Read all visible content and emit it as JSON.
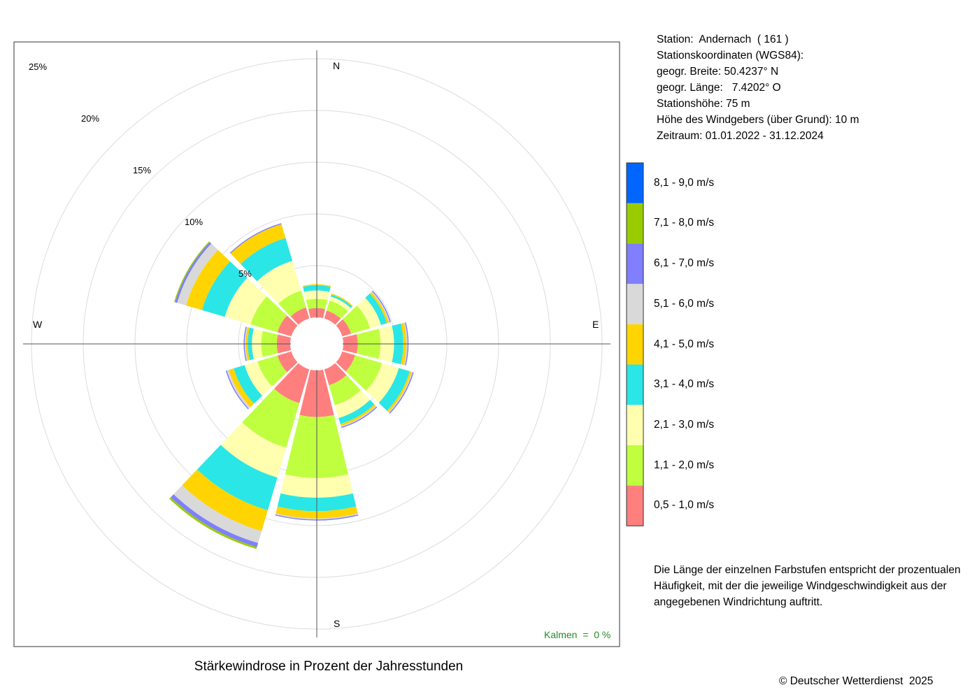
{
  "chart_data": {
    "type": "windrose",
    "title": "Stärkewindrose in Prozent der Jahresstunden",
    "unit": "%",
    "radial_max": 25,
    "rings": [
      5,
      10,
      15,
      20,
      25
    ],
    "ring_labels": [
      "5%",
      "10%",
      "15%",
      "20%",
      "25%"
    ],
    "directions": [
      "N",
      "NNE",
      "ENE",
      "E",
      "ESE",
      "SSE",
      "S",
      "SSW",
      "WSW",
      "W",
      "WNW",
      "NNW"
    ],
    "direction_angles": [
      0,
      30,
      60,
      90,
      120,
      150,
      180,
      210,
      240,
      270,
      300,
      330
    ],
    "compass_labels": {
      "N": "N",
      "E": "E",
      "S": "S",
      "W": "W"
    },
    "speed_classes": [
      {
        "label": "0,5 - 1,0 m/s",
        "color": "#ff7f7f"
      },
      {
        "label": "1,1 - 2,0 m/s",
        "color": "#bfff3f"
      },
      {
        "label": "2,1 - 3,0 m/s",
        "color": "#ffffaf"
      },
      {
        "label": "3,1 - 4,0 m/s",
        "color": "#2ae6e6"
      },
      {
        "label": "4,1 - 5,0 m/s",
        "color": "#ffd400"
      },
      {
        "label": "5,1 - 6,0 m/s",
        "color": "#d9d9d9"
      },
      {
        "label": "6,1 - 7,0 m/s",
        "color": "#7f7fff"
      },
      {
        "label": "7,1 - 8,0 m/s",
        "color": "#99cc00"
      },
      {
        "label": "8,1 - 9,0 m/s",
        "color": "#0066ff"
      }
    ],
    "series": [
      {
        "direction": "N",
        "values": [
          0.9,
          0.9,
          0.8,
          0.5,
          0.1,
          0.0,
          0.0,
          0.0,
          0.0
        ]
      },
      {
        "direction": "NNE",
        "values": [
          0.8,
          1.0,
          0.4,
          0.2,
          0.1,
          0.0,
          0.0,
          0.0,
          0.0
        ]
      },
      {
        "direction": "ENE",
        "values": [
          0.9,
          1.9,
          1.1,
          0.6,
          0.2,
          0.1,
          0.1,
          0.0,
          0.0
        ]
      },
      {
        "direction": "E",
        "values": [
          1.4,
          2.2,
          1.3,
          0.9,
          0.3,
          0.1,
          0.1,
          0.0,
          0.0
        ]
      },
      {
        "direction": "ESE",
        "values": [
          1.3,
          2.7,
          1.7,
          1.1,
          0.2,
          0.1,
          0.1,
          0.0,
          0.0
        ]
      },
      {
        "direction": "SSE",
        "values": [
          1.6,
          2.0,
          1.3,
          0.6,
          0.2,
          0.1,
          0.1,
          0.0,
          0.0
        ]
      },
      {
        "direction": "S",
        "values": [
          4.5,
          5.9,
          1.9,
          1.3,
          0.7,
          0.1,
          0.1,
          0.0,
          0.0
        ]
      },
      {
        "direction": "SSW",
        "values": [
          3.4,
          4.5,
          3.0,
          3.3,
          2.1,
          1.2,
          0.4,
          0.2,
          0.0
        ]
      },
      {
        "direction": "WSW",
        "values": [
          1.4,
          2.0,
          1.3,
          1.1,
          0.5,
          0.2,
          0.1,
          0.0,
          0.0
        ]
      },
      {
        "direction": "W",
        "values": [
          1.3,
          1.5,
          0.9,
          0.4,
          0.2,
          0.1,
          0.1,
          0.0,
          0.0
        ]
      },
      {
        "direction": "WNW",
        "values": [
          1.4,
          2.7,
          2.6,
          2.3,
          1.6,
          0.9,
          0.2,
          0.1,
          0.0
        ]
      },
      {
        "direction": "NNW",
        "values": [
          1.1,
          1.7,
          3.0,
          2.3,
          1.4,
          0.0,
          0.1,
          0.0,
          0.0
        ]
      }
    ],
    "calm_text": "Kalmen  =  0 %"
  },
  "station": {
    "name_line": "Station:  Andernach  ( 161 )",
    "coords_header": "Stationskoordinaten (WGS84):",
    "lat_line": "geogr. Breite: 50.4237° N",
    "lon_line": "geogr. Länge:   7.4202° O",
    "height_line": "Stationshöhe: 75 m",
    "sensor_line": "Höhe des Windgebers (über Grund): 10 m",
    "period_line": "Zeitraum: 01.01.2022 - 31.12.2024"
  },
  "note": "Die Länge der einzelnen Farbstufen entspricht der prozentualen Häufigkeit, mit der die jeweilige Windgeschwindigkeit aus der angegebenen Windrichtung auftritt.",
  "copyright": "© Deutscher Wetterdienst  2025"
}
